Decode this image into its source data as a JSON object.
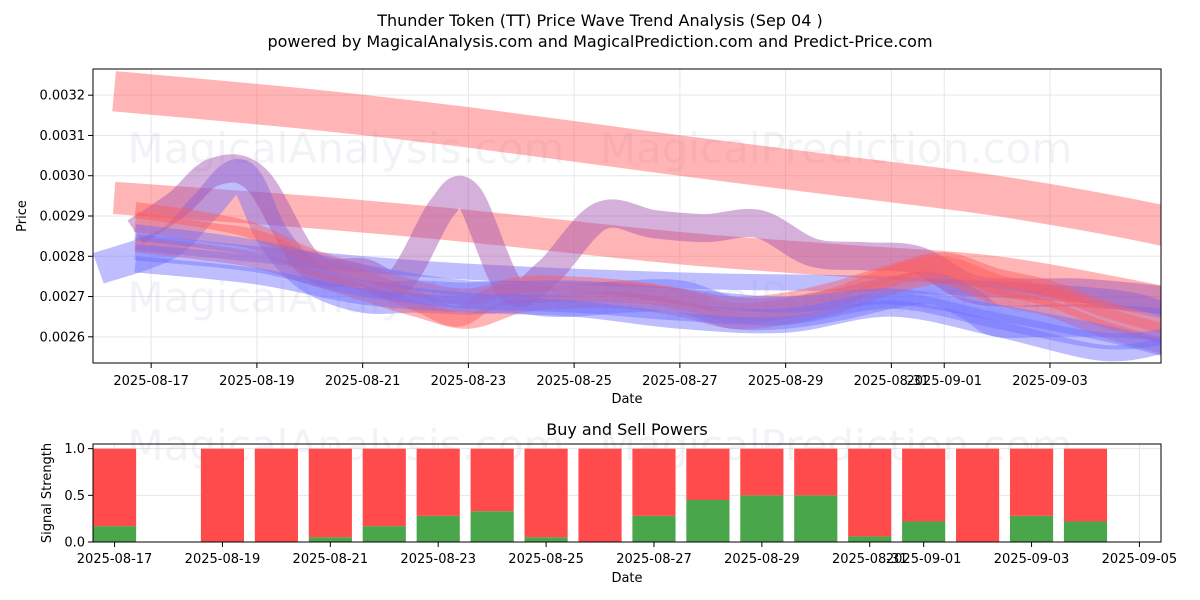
{
  "title_line1": "Thunder Token (TT) Price Wave Trend Analysis (Sep 04 )",
  "title_line2": "powered by MagicalAnalysis.com and MagicalPrediction.com and Predict-Price.com",
  "watermarks": [
    "MagicalAnalysis.com",
    "MagicalPrediction.com"
  ],
  "chart_data": [
    {
      "type": "area",
      "title": "Thunder Token (TT) Price Wave Trend Analysis (Sep 04 )",
      "xlabel": "Date",
      "ylabel": "Price",
      "xlim": [
        "2025-08-15.9",
        "2025-09-05.1"
      ],
      "ylim": [
        0.002535,
        0.003265
      ],
      "xticks": [
        "2025-08-17",
        "2025-08-19",
        "2025-08-21",
        "2025-08-23",
        "2025-08-25",
        "2025-08-27",
        "2025-08-29",
        "2025-08-31",
        "2025-09-01",
        "2025-09-03"
      ],
      "yticks": [
        "0.0026",
        "0.0027",
        "0.0028",
        "0.0029",
        "0.0030",
        "0.0031",
        "0.0032"
      ],
      "colors": {
        "red": "#ff5a5a",
        "blue": "#6f6fff",
        "purple": "#a050b0"
      },
      "series": [
        {
          "name": "red-band-upper",
          "color": "red",
          "width": 0.0001,
          "x": [
            -0.7,
            3,
            6,
            10,
            13,
            16,
            19,
            20.3
          ],
          "y": [
            0.00321,
            0.003165,
            0.00312,
            0.00305,
            0.003,
            0.00295,
            0.00288,
            0.002828
          ]
        },
        {
          "name": "red-band-lower",
          "color": "red",
          "width": 8e-05,
          "x": [
            -0.7,
            3,
            6,
            10,
            13,
            16,
            19,
            20.3
          ],
          "y": [
            0.002945,
            0.00291,
            0.002875,
            0.00282,
            0.00279,
            0.00276,
            0.00269,
            0.002655
          ]
        },
        {
          "name": "blue-wave",
          "color": "blue",
          "width": 8e-05,
          "x": [
            -1,
            0.3,
            1,
            1.7,
            2.3,
            3,
            4,
            5,
            6,
            6.8,
            7.5,
            8,
            9,
            10,
            11,
            12,
            13,
            14,
            14.8,
            15.5,
            16,
            17,
            18,
            19.2
          ],
          "y": [
            0.00277,
            0.00283,
            0.00292,
            0.003,
            0.00285,
            0.00275,
            0.0027,
            0.0027,
            0.002695,
            0.0027,
            0.00269,
            0.00269,
            0.0027,
            0.0027,
            0.00266,
            0.00266,
            0.00268,
            0.00271,
            0.00272,
            0.00268,
            0.00264,
            0.00264,
            0.00264,
            0.00263
          ]
        },
        {
          "name": "blue-band",
          "color": "blue",
          "width": 4e-05,
          "x": [
            -0.3,
            5,
            10,
            14,
            18,
            19.2
          ],
          "y": [
            0.002835,
            0.00277,
            0.00274,
            0.00273,
            0.0027,
            0.002665
          ]
        },
        {
          "name": "purple-wave",
          "color": "purple",
          "width": 7e-05,
          "x": [
            -0.3,
            0.5,
            1.2,
            2,
            3,
            4,
            4.7,
            5.5,
            6,
            6.8,
            7.5,
            8.5,
            9.5,
            10.5,
            11.5,
            12.5,
            13.5,
            14.5,
            15.5,
            16.5,
            17.5,
            18.5,
            19.2
          ],
          "y": [
            0.00286,
            0.00293,
            0.00301,
            0.00299,
            0.00278,
            0.00276,
            0.00274,
            0.00292,
            0.00295,
            0.00272,
            0.00276,
            0.0029,
            0.00288,
            0.00287,
            0.00288,
            0.00281,
            0.0028,
            0.00279,
            0.00272,
            0.00271,
            0.00271,
            0.0027,
            0.00269
          ]
        },
        {
          "name": "red-wave-main",
          "color": "red",
          "width": 5e-05,
          "x": [
            -0.3,
            1,
            2,
            3,
            4,
            5,
            5.8,
            6.5,
            7.5,
            9,
            10,
            11,
            12,
            13,
            14,
            15,
            16,
            17,
            18,
            19.2
          ],
          "y": [
            0.002885,
            0.00286,
            0.00284,
            0.00278,
            0.00274,
            0.00269,
            0.00265,
            0.0027,
            0.00271,
            0.00271,
            0.002695,
            0.00266,
            0.00267,
            0.0027,
            0.00275,
            0.002775,
            0.00273,
            0.0027,
            0.00265,
            0.002605
          ]
        },
        {
          "name": "red-wave-upper",
          "color": "red",
          "width": 4e-05,
          "x": [
            -0.3,
            1,
            2,
            3,
            4,
            5,
            6,
            7,
            8,
            9,
            10,
            11,
            12,
            13,
            14,
            15,
            16,
            17,
            18,
            19.2
          ],
          "y": [
            0.002915,
            0.00289,
            0.00286,
            0.0028,
            0.00276,
            0.00272,
            0.0027,
            0.00273,
            0.00273,
            0.00272,
            0.0027,
            0.00268,
            0.00269,
            0.00272,
            0.00276,
            0.00279,
            0.00275,
            0.00272,
            0.00267,
            0.002625
          ]
        },
        {
          "name": "red-wave-lower",
          "color": "red",
          "width": 4e-05,
          "x": [
            -0.3,
            1,
            2,
            3,
            4,
            5,
            6,
            7,
            8,
            9,
            10,
            11,
            12,
            13,
            14,
            15,
            16,
            17,
            18,
            19.2
          ],
          "y": [
            0.00283,
            0.00281,
            0.00279,
            0.00275,
            0.00271,
            0.00267,
            0.00264,
            0.00268,
            0.00269,
            0.00269,
            0.00267,
            0.00264,
            0.00265,
            0.00268,
            0.002725,
            0.00275,
            0.0027,
            0.00267,
            0.00262,
            0.002575
          ]
        },
        {
          "name": "blue-trend-a",
          "color": "blue",
          "width": 4e-05,
          "x": [
            -0.3,
            2,
            4,
            6,
            8,
            10,
            12,
            14,
            16,
            18,
            19.2
          ],
          "y": [
            0.00286,
            0.00282,
            0.00276,
            0.00272,
            0.00272,
            0.0027,
            0.00268,
            0.0027,
            0.00266,
            0.00261,
            0.00257
          ]
        },
        {
          "name": "blue-trend-b",
          "color": "blue",
          "width": 4e-05,
          "x": [
            -0.3,
            2,
            4,
            6,
            8,
            10,
            12,
            14,
            16,
            18,
            19.2
          ],
          "y": [
            0.00281,
            0.00278,
            0.00272,
            0.00269,
            0.00268,
            0.00266,
            0.00265,
            0.00269,
            0.00264,
            0.00259,
            0.0026
          ]
        },
        {
          "name": "blue-trend-c",
          "color": "blue",
          "width": 4e-05,
          "x": [
            -0.3,
            2,
            4,
            6,
            8,
            10,
            12,
            14,
            16,
            18,
            19.2
          ],
          "y": [
            0.00278,
            0.00275,
            0.0027,
            0.00268,
            0.00267,
            0.00264,
            0.00263,
            0.00267,
            0.00262,
            0.00256,
            0.00258
          ]
        }
      ]
    },
    {
      "type": "bar",
      "title": "Buy and Sell Powers",
      "xlabel": "Date",
      "ylabel": "Signal Strength",
      "xlim": [
        "2025-08-16.6",
        "2025-09-05.4"
      ],
      "ylim": [
        0,
        1.05
      ],
      "xticks": [
        "2025-08-17",
        "2025-08-19",
        "2025-08-21",
        "2025-08-23",
        "2025-08-25",
        "2025-08-27",
        "2025-08-29",
        "2025-08-31",
        "2025-09-01",
        "2025-09-03",
        "2025-09-05"
      ],
      "yticks": [
        "0.0",
        "0.5",
        "1.0"
      ],
      "colors": {
        "buy": "#4aa64a",
        "sell": "#ff4b4b"
      },
      "categories": [
        "2025-08-17",
        "2025-08-19",
        "2025-08-20",
        "2025-08-21",
        "2025-08-22",
        "2025-08-23",
        "2025-08-24",
        "2025-08-25",
        "2025-08-26",
        "2025-08-27",
        "2025-08-28",
        "2025-08-29",
        "2025-08-30",
        "2025-08-31",
        "2025-09-01",
        "2025-09-02",
        "2025-09-03",
        "2025-09-04"
      ],
      "series": [
        {
          "name": "Buy",
          "values": [
            0.17,
            0.0,
            0.0,
            0.05,
            0.17,
            0.28,
            0.33,
            0.05,
            0.0,
            0.28,
            0.45,
            0.5,
            0.5,
            0.06,
            0.22,
            0.0,
            0.28,
            0.22
          ]
        },
        {
          "name": "Sell",
          "values": [
            0.83,
            1.0,
            1.0,
            0.95,
            0.83,
            0.72,
            0.67,
            0.95,
            1.0,
            0.72,
            0.55,
            0.5,
            0.5,
            0.94,
            0.78,
            1.0,
            0.72,
            0.78
          ]
        }
      ]
    }
  ]
}
